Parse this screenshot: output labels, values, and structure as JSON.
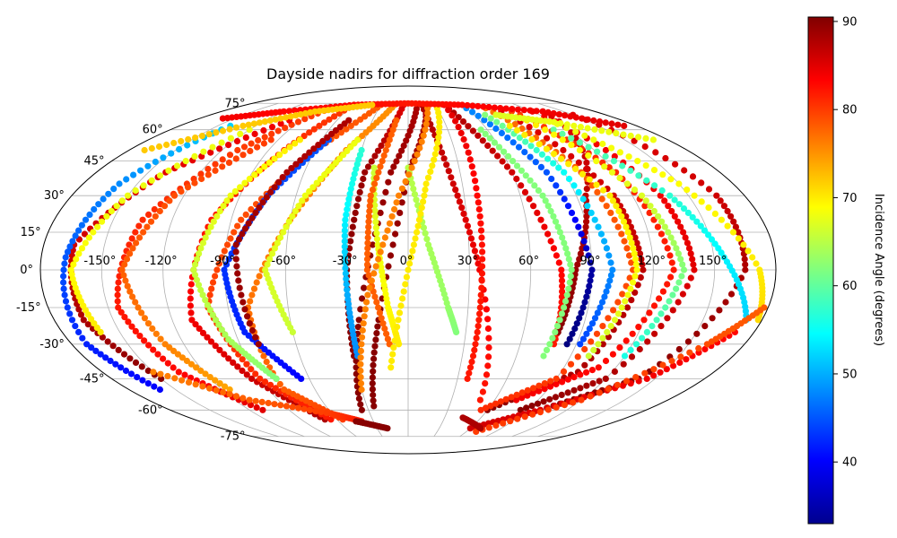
{
  "chart_data": {
    "type": "scatter",
    "projection": "mollweide",
    "title": "Dayside nadirs for diffraction order 169",
    "grid": true,
    "lon_ticks": [
      "-150°",
      "-120°",
      "-90°",
      "-60°",
      "-30°",
      "0°",
      "30°",
      "60°",
      "90°",
      "120°",
      "150°"
    ],
    "lat_ticks": [
      "75°",
      "60°",
      "45°",
      "30°",
      "15°",
      "0°",
      "-15°",
      "-30°",
      "-45°",
      "-60°",
      "-75°"
    ],
    "lon_tick_values": [
      -150,
      -120,
      -90,
      -60,
      -30,
      0,
      30,
      60,
      90,
      120,
      150
    ],
    "lat_tick_values": [
      75,
      60,
      45,
      30,
      15,
      0,
      -15,
      -30,
      -45,
      -60,
      -75
    ],
    "colorbar": {
      "label": "Incidence Angle (degrees)",
      "ticks": [
        "40",
        "50",
        "60",
        "70",
        "80",
        "90"
      ],
      "tick_values": [
        40,
        50,
        60,
        70,
        80,
        90
      ],
      "range": [
        33,
        90.5
      ],
      "colormap": "jet"
    },
    "series": [
      {
        "values": [
          [
            40,
            74
          ],
          [
            60,
            40
          ],
          [
            75,
            0
          ],
          [
            78,
            -30
          ]
        ],
        "incidence": [
          88,
          86,
          83,
          82
        ]
      },
      {
        "values": [
          [
            130,
            70
          ],
          [
            95,
            30
          ],
          [
            82,
            0
          ],
          [
            78,
            -25
          ]
        ],
        "incidence": [
          85,
          87,
          89,
          90
        ]
      },
      {
        "values": [
          [
            -5,
            74
          ],
          [
            -25,
            40
          ],
          [
            -30,
            0
          ],
          [
            -30,
            -35
          ]
        ],
        "incidence": [
          85,
          89,
          90,
          90
        ]
      },
      {
        "values": [
          [
            10,
            74
          ],
          [
            -10,
            40
          ],
          [
            -25,
            -20
          ],
          [
            -35,
            -60
          ]
        ],
        "incidence": [
          88,
          89,
          90,
          90
        ]
      },
      {
        "values": [
          [
            20,
            74
          ],
          [
            0,
            40
          ],
          [
            -15,
            -20
          ],
          [
            -25,
            -58
          ]
        ],
        "incidence": [
          88,
          89,
          90,
          90
        ]
      },
      {
        "values": [
          [
            15,
            74
          ],
          [
            25,
            35
          ],
          [
            35,
            0
          ],
          [
            50,
            -55
          ]
        ],
        "incidence": [
          88,
          86,
          84,
          82
        ]
      },
      {
        "values": [
          [
            40,
            74
          ],
          [
            37,
            30
          ],
          [
            36,
            -10
          ],
          [
            36,
            -45
          ]
        ],
        "incidence": [
          85,
          83,
          82,
          82
        ]
      },
      {
        "values": [
          [
            90,
            70
          ],
          [
            110,
            30
          ],
          [
            115,
            0
          ],
          [
            100,
            -42
          ],
          [
            60,
            -60
          ]
        ],
        "incidence": [
          85,
          86,
          87,
          88,
          90
        ]
      },
      {
        "values": [
          [
            120,
            70
          ],
          [
            135,
            30
          ],
          [
            140,
            0
          ],
          [
            120,
            -45
          ],
          [
            85,
            -60
          ]
        ],
        "incidence": [
          84,
          84,
          85,
          88,
          90
        ]
      },
      {
        "values": [
          [
            150,
            68
          ],
          [
            165,
            30
          ],
          [
            165,
            0
          ],
          [
            140,
            -45
          ],
          [
            100,
            -60
          ]
        ],
        "incidence": [
          85,
          86,
          88,
          90,
          90
        ]
      },
      {
        "values": [
          [
            100,
            70
          ],
          [
            120,
            40
          ],
          [
            130,
            0
          ],
          [
            110,
            -40
          ],
          [
            75,
            -55
          ]
        ],
        "incidence": [
          80,
          81,
          82,
          83,
          84
        ]
      },
      {
        "values": [
          [
            80,
            72
          ],
          [
            100,
            40
          ],
          [
            110,
            0
          ],
          [
            90,
            -45
          ],
          [
            55,
            -60
          ]
        ],
        "incidence": [
          77,
          78,
          79,
          80,
          81
        ]
      },
      {
        "values": [
          [
            60,
            72
          ],
          [
            80,
            40
          ],
          [
            90,
            0
          ],
          [
            85,
            -30
          ]
        ],
        "incidence": [
          48,
          45,
          35,
          33
        ]
      },
      {
        "values": [
          [
            110,
            60
          ],
          [
            140,
            30
          ],
          [
            155,
            5
          ],
          [
            172,
            -20
          ]
        ],
        "incidence": [
          60,
          57,
          54,
          52
        ]
      },
      {
        "values": [
          [
            120,
            63
          ],
          [
            150,
            35
          ],
          [
            172,
            0
          ],
          [
            178,
            -20
          ]
        ],
        "incidence": [
          68,
          69,
          70,
          71
        ]
      },
      {
        "values": [
          [
            100,
            65
          ],
          [
            125,
            30
          ],
          [
            135,
            0
          ],
          [
            120,
            -35
          ]
        ],
        "incidence": [
          70,
          67,
          62,
          56
        ]
      },
      {
        "values": [
          [
            70,
            68
          ],
          [
            90,
            40
          ],
          [
            100,
            0
          ],
          [
            92,
            -30
          ]
        ],
        "incidence": [
          62,
          55,
          48,
          44
        ]
      },
      {
        "values": [
          [
            55,
            60
          ],
          [
            72,
            30
          ],
          [
            80,
            0
          ],
          [
            75,
            -35
          ]
        ],
        "incidence": [
          62,
          62,
          62,
          62
        ]
      },
      {
        "values": [
          [
            80,
            62
          ],
          [
            108,
            30
          ],
          [
            112,
            0
          ],
          [
            100,
            -35
          ]
        ],
        "incidence": [
          70,
          70,
          69,
          66
        ]
      },
      {
        "values": [
          [
            -60,
            74
          ],
          [
            -80,
            50
          ],
          [
            -100,
            20
          ],
          [
            -110,
            -20
          ],
          [
            -95,
            -45
          ],
          [
            -70,
            -65
          ]
        ],
        "incidence": [
          80,
          81,
          82,
          84,
          86,
          88
        ]
      },
      {
        "values": [
          [
            -30,
            74
          ],
          [
            -60,
            50
          ],
          [
            -85,
            20
          ],
          [
            -100,
            -15
          ],
          [
            -90,
            -45
          ],
          [
            -65,
            -65
          ]
        ],
        "incidence": [
          78,
          79,
          79,
          80,
          81,
          82
        ]
      },
      {
        "values": [
          [
            -15,
            74
          ],
          [
            -40,
            50
          ],
          [
            -60,
            20
          ],
          [
            -80,
            -15
          ],
          [
            -80,
            -50
          ],
          [
            -55,
            -65
          ]
        ],
        "incidence": [
          75,
          76,
          76,
          77,
          78,
          80
        ]
      },
      {
        "values": [
          [
            -80,
            72
          ],
          [
            -110,
            50
          ],
          [
            -135,
            20
          ],
          [
            -145,
            -15
          ],
          [
            -135,
            -42
          ],
          [
            -110,
            -60
          ]
        ],
        "incidence": [
          80,
          80,
          81,
          82,
          83,
          85
        ]
      },
      {
        "values": [
          [
            -100,
            65
          ],
          [
            -140,
            40
          ],
          [
            -165,
            10
          ],
          [
            -165,
            -20
          ],
          [
            -150,
            -45
          ]
        ],
        "incidence": [
          84,
          85,
          86,
          88,
          90
        ]
      },
      {
        "values": [
          [
            -140,
            62
          ],
          [
            -160,
            35
          ],
          [
            -168,
            5
          ],
          [
            -172,
            -30
          ],
          [
            -160,
            -50
          ]
        ],
        "incidence": [
          52,
          48,
          45,
          42,
          40
        ]
      },
      {
        "values": [
          [
            -120,
            60
          ],
          [
            -150,
            30
          ],
          [
            -165,
            0
          ],
          [
            -160,
            -25
          ]
        ],
        "incidence": [
          68,
          68,
          69,
          70
        ]
      },
      {
        "values": [
          [
            -95,
            55
          ],
          [
            -125,
            30
          ],
          [
            -140,
            0
          ],
          [
            -130,
            -30
          ],
          [
            -115,
            -50
          ]
        ],
        "incidence": [
          80,
          79,
          78,
          76,
          74
        ]
      },
      {
        "values": [
          [
            -75,
            55
          ],
          [
            -95,
            30
          ],
          [
            -105,
            0
          ],
          [
            -95,
            -28
          ],
          [
            -80,
            -45
          ]
        ],
        "incidence": [
          70,
          68,
          66,
          64,
          62
        ]
      },
      {
        "values": [
          [
            -55,
            55
          ],
          [
            -75,
            30
          ],
          [
            -90,
            0
          ],
          [
            -85,
            -25
          ],
          [
            -65,
            -45
          ]
        ],
        "incidence": [
          45,
          44,
          43,
          42,
          40
        ]
      },
      {
        "values": [
          [
            -35,
            55
          ],
          [
            -55,
            30
          ],
          [
            -70,
            0
          ],
          [
            -60,
            -25
          ]
        ],
        "incidence": [
          68,
          68,
          67,
          66
        ]
      },
      {
        "values": [
          [
            -50,
            65
          ],
          [
            -70,
            40
          ],
          [
            -85,
            10
          ],
          [
            -80,
            -30
          ]
        ],
        "incidence": [
          88,
          88,
          89,
          89
        ]
      },
      {
        "values": [
          [
            -30,
            50
          ],
          [
            -32,
            20
          ],
          [
            -30,
            -10
          ],
          [
            -28,
            -35
          ]
        ],
        "incidence": [
          57,
          54,
          50,
          48
        ]
      },
      {
        "values": [
          [
            -20,
            42
          ],
          [
            -15,
            10
          ],
          [
            -10,
            -15
          ],
          [
            -5,
            -30
          ]
        ],
        "incidence": [
          66,
          68,
          69,
          70
        ]
      },
      {
        "values": [
          [
            0,
            42
          ],
          [
            10,
            10
          ],
          [
            20,
            -15
          ],
          [
            25,
            -25
          ]
        ],
        "incidence": [
          65,
          64,
          63,
          62
        ]
      },
      {
        "values": [
          [
            -10,
            65
          ],
          [
            -20,
            30
          ],
          [
            -20,
            0
          ],
          [
            -10,
            -30
          ]
        ],
        "incidence": [
          78,
          78,
          78,
          78
        ]
      },
      {
        "values": [
          [
            20,
            72
          ],
          [
            -5,
            30
          ],
          [
            -20,
            -10
          ],
          [
            -30,
            -50
          ]
        ],
        "incidence": [
          76,
          76,
          76,
          76
        ]
      },
      {
        "values": [
          [
            30,
            72
          ],
          [
            10,
            35
          ],
          [
            0,
            0
          ],
          [
            -10,
            -40
          ]
        ],
        "incidence": [
          70,
          70,
          70,
          70
        ]
      },
      {
        "values": [
          [
            -160,
            66
          ],
          [
            -120,
            70
          ],
          [
            -60,
            74
          ],
          [
            0,
            75
          ],
          [
            60,
            74
          ],
          [
            130,
            70
          ],
          [
            170,
            62
          ]
        ],
        "incidence": [
          84,
          83,
          83,
          82,
          83,
          84,
          85
        ]
      },
      {
        "values": [
          [
            -170,
            50
          ],
          [
            -130,
            62
          ],
          [
            -90,
            70
          ],
          [
            -40,
            74
          ]
        ],
        "incidence": [
          72,
          72,
          72,
          72
        ]
      },
      {
        "values": [
          [
            170,
            55
          ],
          [
            120,
            64
          ],
          [
            80,
            68
          ]
        ],
        "incidence": [
          68,
          68,
          67
        ]
      },
      {
        "values": [
          [
            -150,
            -42
          ],
          [
            -110,
            -55
          ],
          [
            -60,
            -62
          ],
          [
            -40,
            -66
          ]
        ],
        "incidence": [
          76,
          78,
          80,
          82
        ]
      },
      {
        "values": [
          [
            60,
            -70
          ],
          [
            100,
            -60
          ],
          [
            145,
            -45
          ],
          [
            170,
            -25
          ]
        ],
        "incidence": [
          86,
          85,
          84,
          83
        ]
      },
      {
        "values": [
          [
            70,
            -72
          ],
          [
            120,
            -55
          ],
          [
            160,
            -30
          ],
          [
            178,
            -15
          ]
        ],
        "incidence": [
          80,
          80,
          79,
          78
        ]
      },
      {
        "values": [
          [
            -45,
            -66
          ],
          [
            -20,
            -70
          ]
        ],
        "incidence": [
          90,
          90
        ]
      },
      {
        "values": [
          [
            45,
            -64
          ],
          [
            70,
            -70
          ]
        ],
        "incidence": [
          88,
          88
        ]
      }
    ]
  }
}
